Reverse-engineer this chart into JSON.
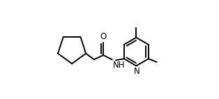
{
  "background": "#ffffff",
  "line_color": "#000000",
  "lw": 1.4,
  "font_size": 8.5,
  "figsize": [
    3.14,
    1.42
  ],
  "dpi": 100,
  "xlim": [
    0.0,
    1.0
  ],
  "ylim": [
    0.05,
    0.95
  ]
}
